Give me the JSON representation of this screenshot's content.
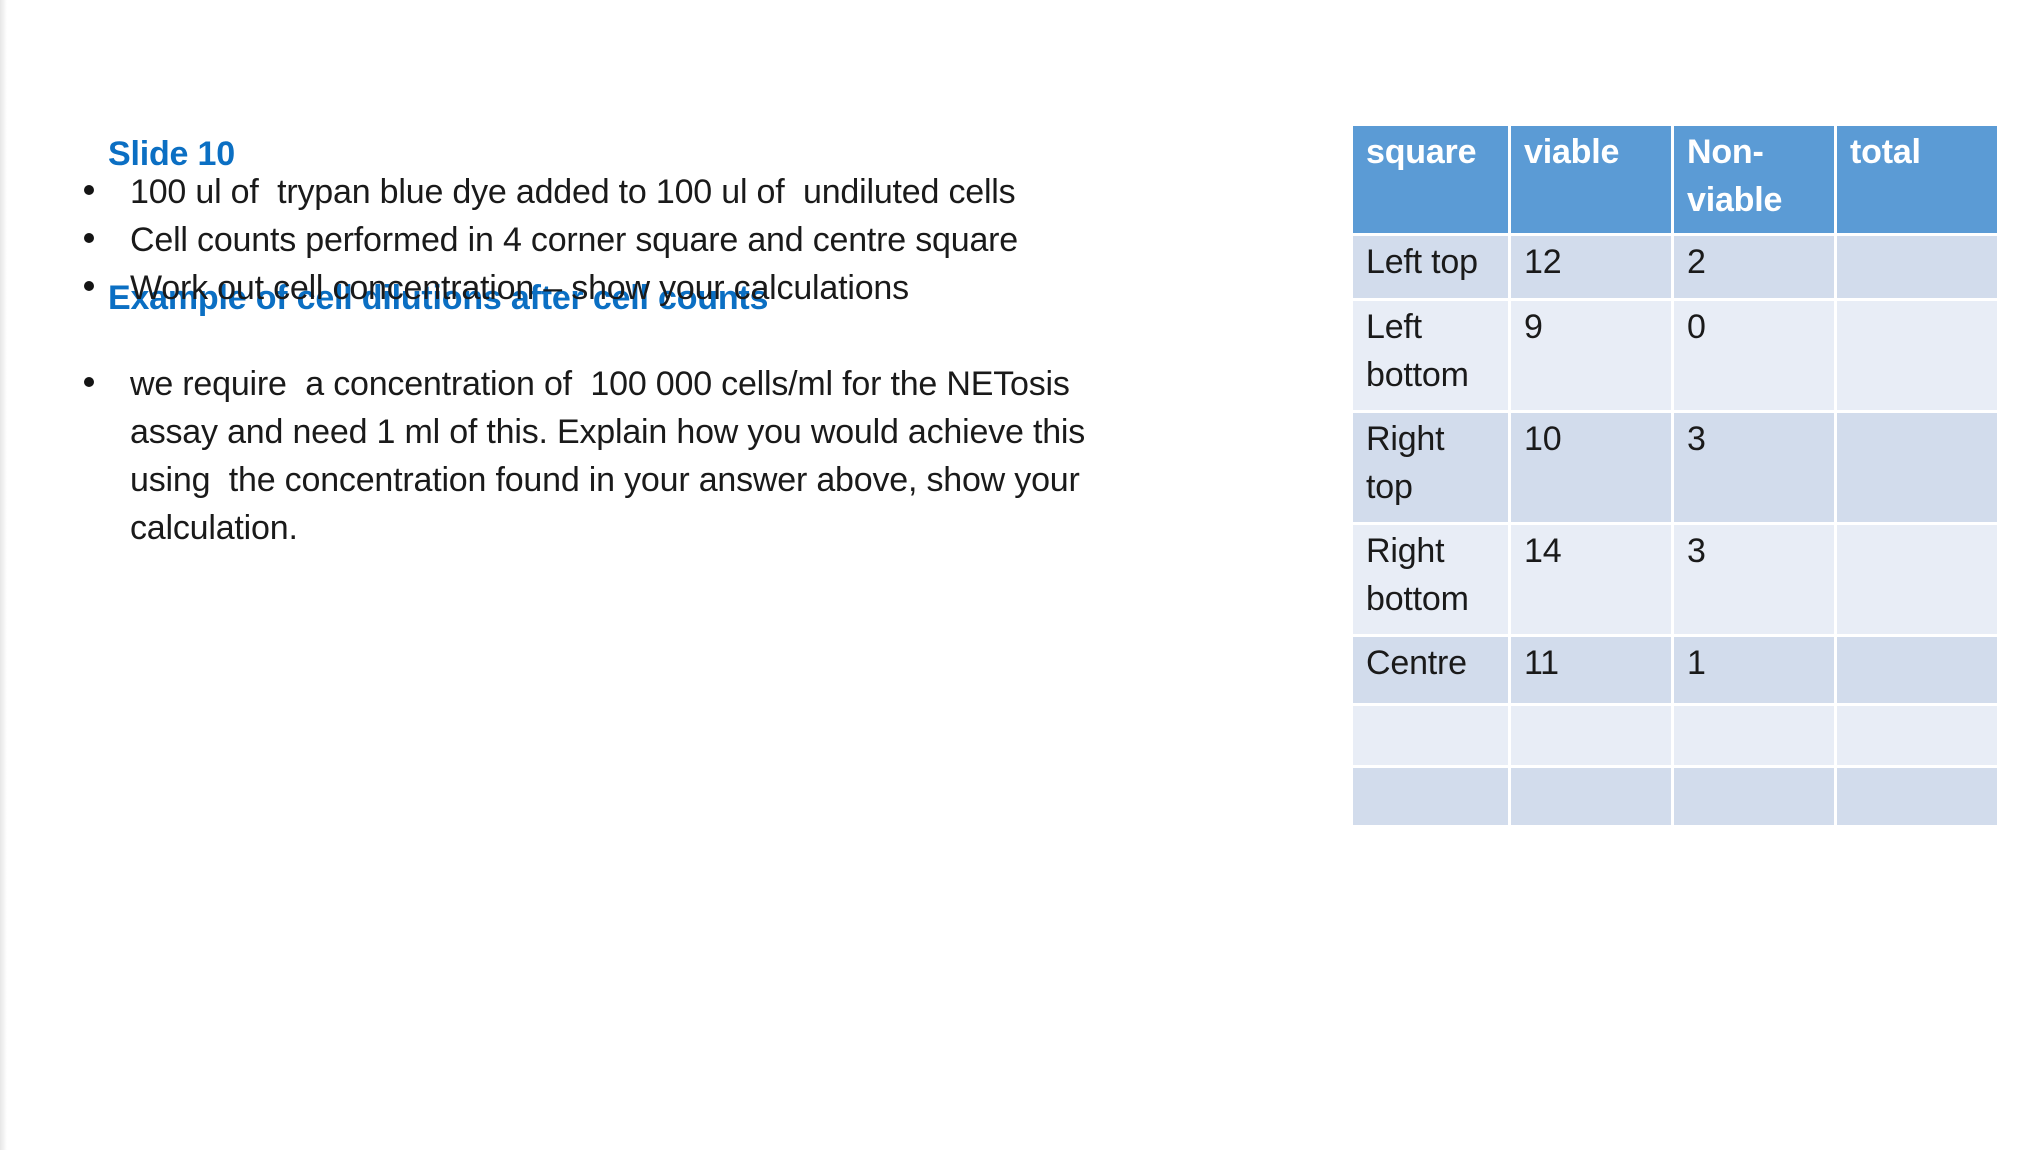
{
  "slide": {
    "title_line1": "Slide 10",
    "title_line2": "Example of cell dilutions after cell counts",
    "title_color": "#0b6fc3"
  },
  "bullets": [
    {
      "lines": [
        "100 ul of  trypan blue dye added to 100 ul of  undiluted cells"
      ]
    },
    {
      "lines": [
        "Cell counts performed in 4 corner square and centre square"
      ]
    },
    {
      "lines": [
        "Work out cell concentration – show your calculations"
      ]
    },
    {
      "gap_before": true,
      "lines": [
        "we require  a concentration of  100 000 cells/ml for the NETosis",
        "assay and need 1 ml of this. Explain how you would achieve this",
        "using  the concentration found in your answer above, show your",
        "calculation."
      ]
    }
  ],
  "table": {
    "headers": [
      "square",
      "viable",
      "Non-viable",
      "total"
    ],
    "header_bg": "#5b9bd5",
    "band_dark": "#d2dcec",
    "band_light": "#e8edf6",
    "rows": [
      {
        "cells": [
          "Left top",
          "12",
          "2",
          ""
        ]
      },
      {
        "cells": [
          "Left bottom",
          "9",
          "0",
          ""
        ]
      },
      {
        "cells": [
          "Right top",
          "10",
          "3",
          ""
        ]
      },
      {
        "cells": [
          "Right bottom",
          "14",
          "3",
          ""
        ]
      },
      {
        "cells": [
          "Centre",
          "11",
          "1",
          ""
        ]
      },
      {
        "cells": [
          "",
          "",
          "",
          ""
        ]
      },
      {
        "cells": [
          "",
          "",
          "",
          ""
        ]
      }
    ]
  }
}
